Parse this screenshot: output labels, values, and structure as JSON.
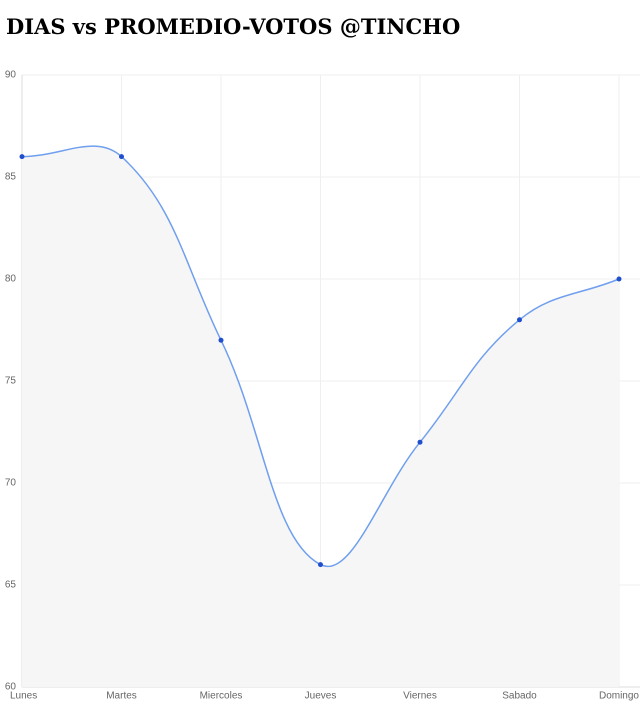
{
  "chart_data": {
    "type": "line",
    "title": "DIAS vs PROMEDIO-VOTOS @TINCHO",
    "categories": [
      "Lunes",
      "Martes",
      "Miercoles",
      "Jueves",
      "Viernes",
      "Sabado",
      "Domingo"
    ],
    "values": [
      86,
      86,
      77,
      66,
      72,
      78,
      80
    ],
    "color": "#6f9fee",
    "point_color": "#1f4fcc",
    "fill_color": "#f6f6f7",
    "ylim": [
      60,
      90
    ],
    "yticks": [
      60,
      65,
      70,
      75,
      80,
      85,
      90
    ],
    "grid": true
  }
}
